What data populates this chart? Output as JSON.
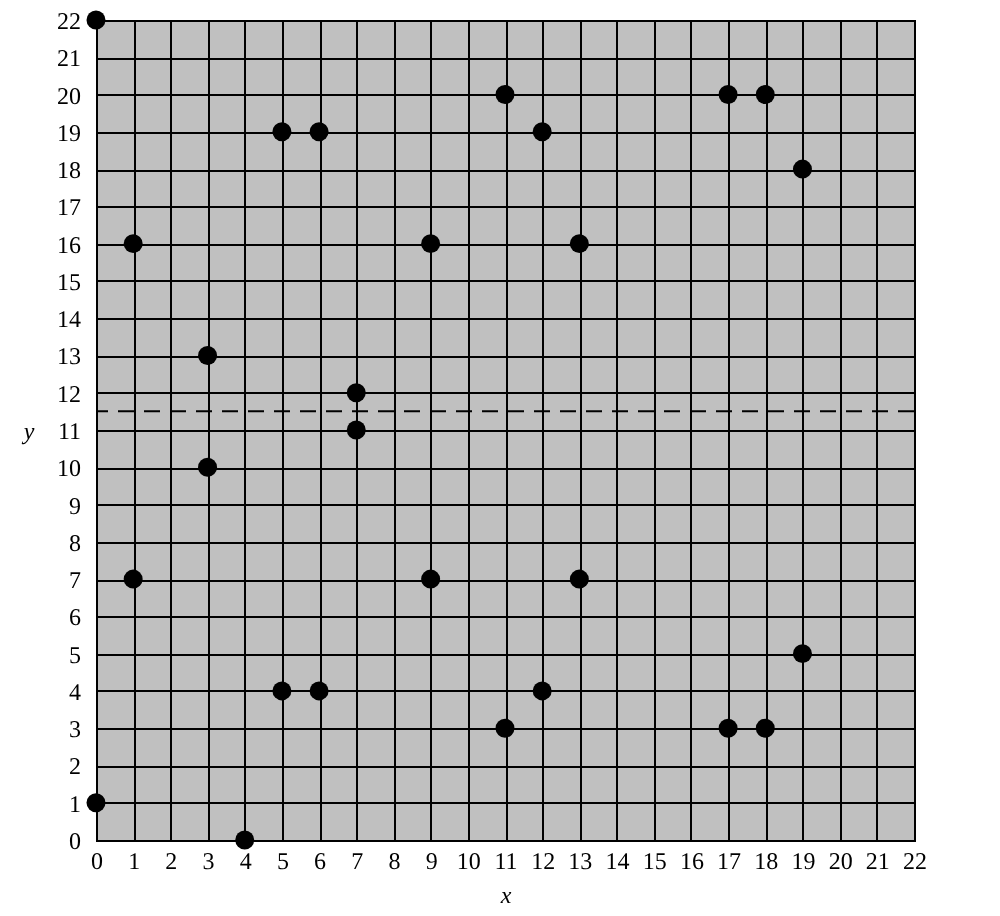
{
  "chart_data": {
    "type": "scatter",
    "xlabel": "x",
    "ylabel": "y",
    "x": [
      0,
      0,
      1,
      1,
      3,
      3,
      4,
      5,
      6,
      5,
      6,
      7,
      7,
      9,
      9,
      11,
      12,
      13,
      11,
      12,
      13,
      17,
      18,
      19,
      17,
      18,
      19
    ],
    "series": [
      {
        "color": "#000000",
        "values": [
          22,
          1,
          16,
          7,
          13,
          10,
          0,
          19,
          19,
          4,
          4,
          12,
          11,
          16,
          7,
          20,
          19,
          16,
          3,
          4,
          7,
          20,
          20,
          18,
          3,
          3,
          5
        ]
      }
    ],
    "xlim": [
      0,
      22
    ],
    "ylim": [
      0,
      22
    ],
    "xticks": [
      0,
      1,
      2,
      3,
      4,
      5,
      6,
      7,
      8,
      9,
      10,
      11,
      12,
      13,
      14,
      15,
      16,
      17,
      18,
      19,
      20,
      21,
      22
    ],
    "yticks": [
      0,
      1,
      2,
      3,
      4,
      5,
      6,
      7,
      8,
      9,
      10,
      11,
      12,
      13,
      14,
      15,
      16,
      17,
      18,
      19,
      20,
      21,
      22
    ],
    "grid": true,
    "marker": "circle",
    "ref_lines": [
      {
        "axis": "y",
        "value": 11.5,
        "color": "#000000",
        "line_style": "dashed"
      }
    ]
  }
}
